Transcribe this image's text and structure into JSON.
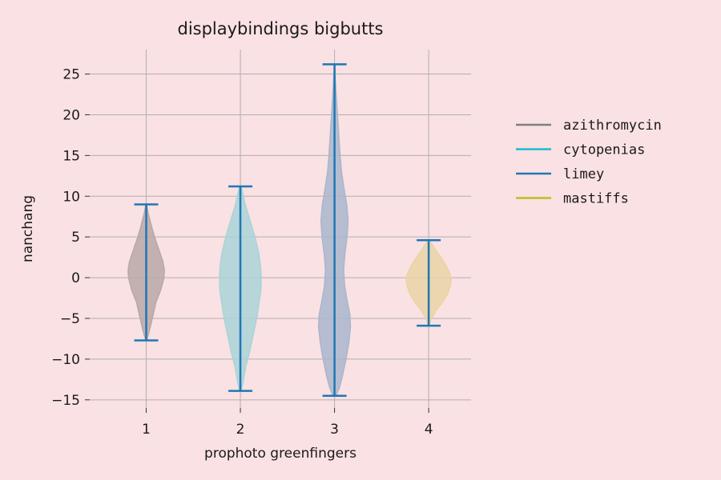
{
  "chart_data": {
    "type": "violin",
    "title": "displaybindings bigbutts",
    "xlabel": "prophoto greenfingers",
    "ylabel": "nanchang",
    "categories": [
      "1",
      "2",
      "3",
      "4"
    ],
    "ylim": [
      -16,
      28
    ],
    "yticks": [
      -15,
      -10,
      -5,
      0,
      5,
      10,
      15,
      20,
      25
    ],
    "ytick_labels": [
      "−15",
      "−10",
      "−5",
      "0",
      "5",
      "10",
      "15",
      "20",
      "25"
    ],
    "grid": true,
    "legend_position": "right",
    "series": [
      {
        "name": "azithromycin",
        "color": "#7f7f7f",
        "fill": "#b8a8a8",
        "x": 1,
        "min": -7.7,
        "max": 9.0,
        "profile": [
          [
            -7.7,
            0.1
          ],
          [
            -7.0,
            0.6
          ],
          [
            -6.0,
            1.2
          ],
          [
            -4.5,
            2.0
          ],
          [
            -3.0,
            2.8
          ],
          [
            -1.5,
            4.2
          ],
          [
            0,
            5.1
          ],
          [
            1.0,
            5.2
          ],
          [
            2.0,
            4.8
          ],
          [
            3.5,
            3.6
          ],
          [
            5.0,
            2.4
          ],
          [
            6.5,
            1.4
          ],
          [
            8.0,
            0.5
          ],
          [
            9.0,
            0.1
          ]
        ]
      },
      {
        "name": "cytopenias",
        "color": "#17becf",
        "fill": "#a9d4d8",
        "x": 2,
        "min": -13.9,
        "max": 11.2,
        "profile": [
          [
            -13.9,
            0.2
          ],
          [
            -13.0,
            0.7
          ],
          [
            -11.0,
            1.5
          ],
          [
            -9.0,
            2.7
          ],
          [
            -7.0,
            3.7
          ],
          [
            -5.0,
            4.7
          ],
          [
            -3.0,
            5.4
          ],
          [
            -1.5,
            5.9
          ],
          [
            0,
            6.0
          ],
          [
            1.5,
            5.8
          ],
          [
            3.0,
            5.3
          ],
          [
            5.0,
            4.2
          ],
          [
            7.0,
            2.8
          ],
          [
            9.0,
            1.4
          ],
          [
            10.5,
            0.6
          ],
          [
            11.2,
            0.2
          ]
        ]
      },
      {
        "name": "limey",
        "color": "#1f77b4",
        "fill": "#a9b6cc",
        "x": 3,
        "min": -14.5,
        "max": 26.2,
        "profile": [
          [
            -14.5,
            0.4
          ],
          [
            -13.5,
            1.4
          ],
          [
            -12.0,
            2.3
          ],
          [
            -10.0,
            3.3
          ],
          [
            -8.0,
            4.1
          ],
          [
            -6.0,
            4.6
          ],
          [
            -4.5,
            4.4
          ],
          [
            -3.0,
            3.7
          ],
          [
            -1.0,
            2.9
          ],
          [
            1.0,
            2.6
          ],
          [
            3.0,
            3.0
          ],
          [
            5.0,
            3.6
          ],
          [
            7.0,
            3.9
          ],
          [
            9.0,
            3.5
          ],
          [
            11.0,
            2.7
          ],
          [
            13.0,
            2.0
          ],
          [
            15.0,
            1.6
          ],
          [
            17.0,
            1.3
          ],
          [
            19.0,
            1.0
          ],
          [
            21.0,
            0.7
          ],
          [
            23.0,
            0.4
          ],
          [
            25.0,
            0.15
          ],
          [
            26.2,
            0.05
          ]
        ]
      },
      {
        "name": "mastiffs",
        "color": "#bcbd22",
        "fill": "#e9d4a6",
        "x": 4,
        "min": -5.9,
        "max": 4.6,
        "profile": [
          [
            -5.9,
            0.1
          ],
          [
            -5.0,
            0.8
          ],
          [
            -4.0,
            2.2
          ],
          [
            -3.0,
            4.0
          ],
          [
            -2.0,
            5.4
          ],
          [
            -1.0,
            6.2
          ],
          [
            -0.3,
            6.5
          ],
          [
            0.5,
            6.1
          ],
          [
            1.5,
            5.0
          ],
          [
            2.5,
            3.5
          ],
          [
            3.5,
            1.9
          ],
          [
            4.2,
            0.8
          ],
          [
            4.6,
            0.1
          ]
        ]
      }
    ],
    "whisker_color": "#1f77b4"
  }
}
